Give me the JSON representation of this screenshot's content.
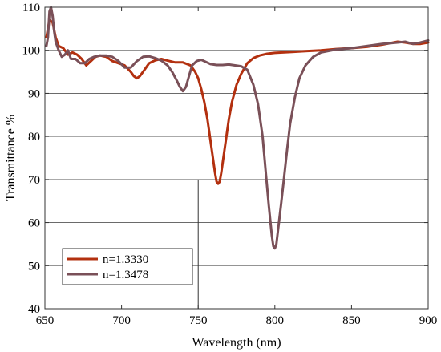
{
  "chart_data": {
    "type": "line",
    "xlabel": "Wavelength (nm)",
    "ylabel": "Transmittance %",
    "xlim": [
      650,
      900
    ],
    "ylim": [
      40,
      110
    ],
    "xticks": [
      650,
      700,
      750,
      800,
      850,
      900
    ],
    "yticks": [
      40,
      50,
      60,
      70,
      80,
      90,
      100,
      110
    ],
    "grid": "horizontal",
    "legend_position": "bottom-left",
    "series": [
      {
        "name": "n=1.3330",
        "color": "#b3300f",
        "x": [
          651,
          653,
          655,
          657,
          659,
          662,
          665,
          668,
          671,
          674,
          677,
          680,
          683,
          686,
          690,
          694,
          698,
          702,
          706,
          708,
          710,
          712,
          715,
          718,
          722,
          726,
          730,
          735,
          740,
          745,
          748,
          750,
          752,
          754,
          756,
          758,
          760,
          761,
          762,
          763,
          764,
          765,
          766,
          768,
          770,
          772,
          775,
          778,
          782,
          786,
          790,
          795,
          800,
          810,
          820,
          830,
          840,
          850,
          860,
          870,
          880,
          885,
          890,
          895,
          900
        ],
        "y": [
          103,
          107,
          106.5,
          103,
          101,
          100.5,
          99,
          99.5,
          99,
          98,
          96.5,
          97.5,
          98.5,
          98.8,
          98.5,
          97.5,
          97,
          96.5,
          95,
          94,
          93.5,
          94,
          95.5,
          97,
          97.7,
          98,
          97.6,
          97.2,
          97.2,
          96.5,
          95,
          93.5,
          91,
          88,
          84,
          79,
          74,
          71.5,
          69.5,
          69,
          69.5,
          71.5,
          74,
          79,
          84,
          88,
          92,
          94.5,
          97,
          98.2,
          98.8,
          99.2,
          99.4,
          99.6,
          99.8,
          100,
          100.3,
          100.5,
          100.8,
          101.3,
          102,
          101.8,
          101.5,
          101.5,
          101.8
        ]
      },
      {
        "name": "n=1.3478",
        "color": "#7a5058",
        "x": [
          651,
          652,
          653,
          654,
          655,
          656,
          657,
          659,
          661,
          663,
          665,
          667,
          670,
          673,
          676,
          679,
          682,
          686,
          690,
          694,
          698,
          702,
          706,
          710,
          714,
          718,
          722,
          726,
          730,
          733,
          736,
          738,
          740,
          742,
          744,
          746,
          749,
          752,
          755,
          758,
          762,
          766,
          770,
          774,
          778,
          782,
          786,
          789,
          792,
          794,
          796,
          798,
          799,
          800,
          801,
          802,
          804,
          806,
          808,
          810,
          813,
          816,
          820,
          825,
          830,
          840,
          850,
          860,
          870,
          880,
          885,
          890,
          895,
          900
        ],
        "y": [
          101,
          103,
          109,
          110,
          108,
          104.5,
          102,
          100,
          98.5,
          99,
          100,
          98,
          98,
          97,
          97,
          98,
          98.5,
          98.8,
          98.8,
          98.5,
          97.5,
          96,
          96,
          97.5,
          98.5,
          98.6,
          98.2,
          97.6,
          96.5,
          95,
          93,
          91.5,
          90.5,
          91.5,
          94,
          96.5,
          97.5,
          97.8,
          97.3,
          96.8,
          96.6,
          96.6,
          96.7,
          96.5,
          96.3,
          95.5,
          92,
          87.5,
          80,
          72,
          64,
          57,
          54.5,
          54,
          55,
          58,
          64,
          70.5,
          77,
          83,
          89,
          93.5,
          96.5,
          98.5,
          99.5,
          100.2,
          100.5,
          101,
          101.5,
          101.8,
          102,
          101.5,
          101.8,
          102.3
        ]
      }
    ],
    "annotation_line": {
      "x": 750,
      "y_top": 70
    }
  }
}
